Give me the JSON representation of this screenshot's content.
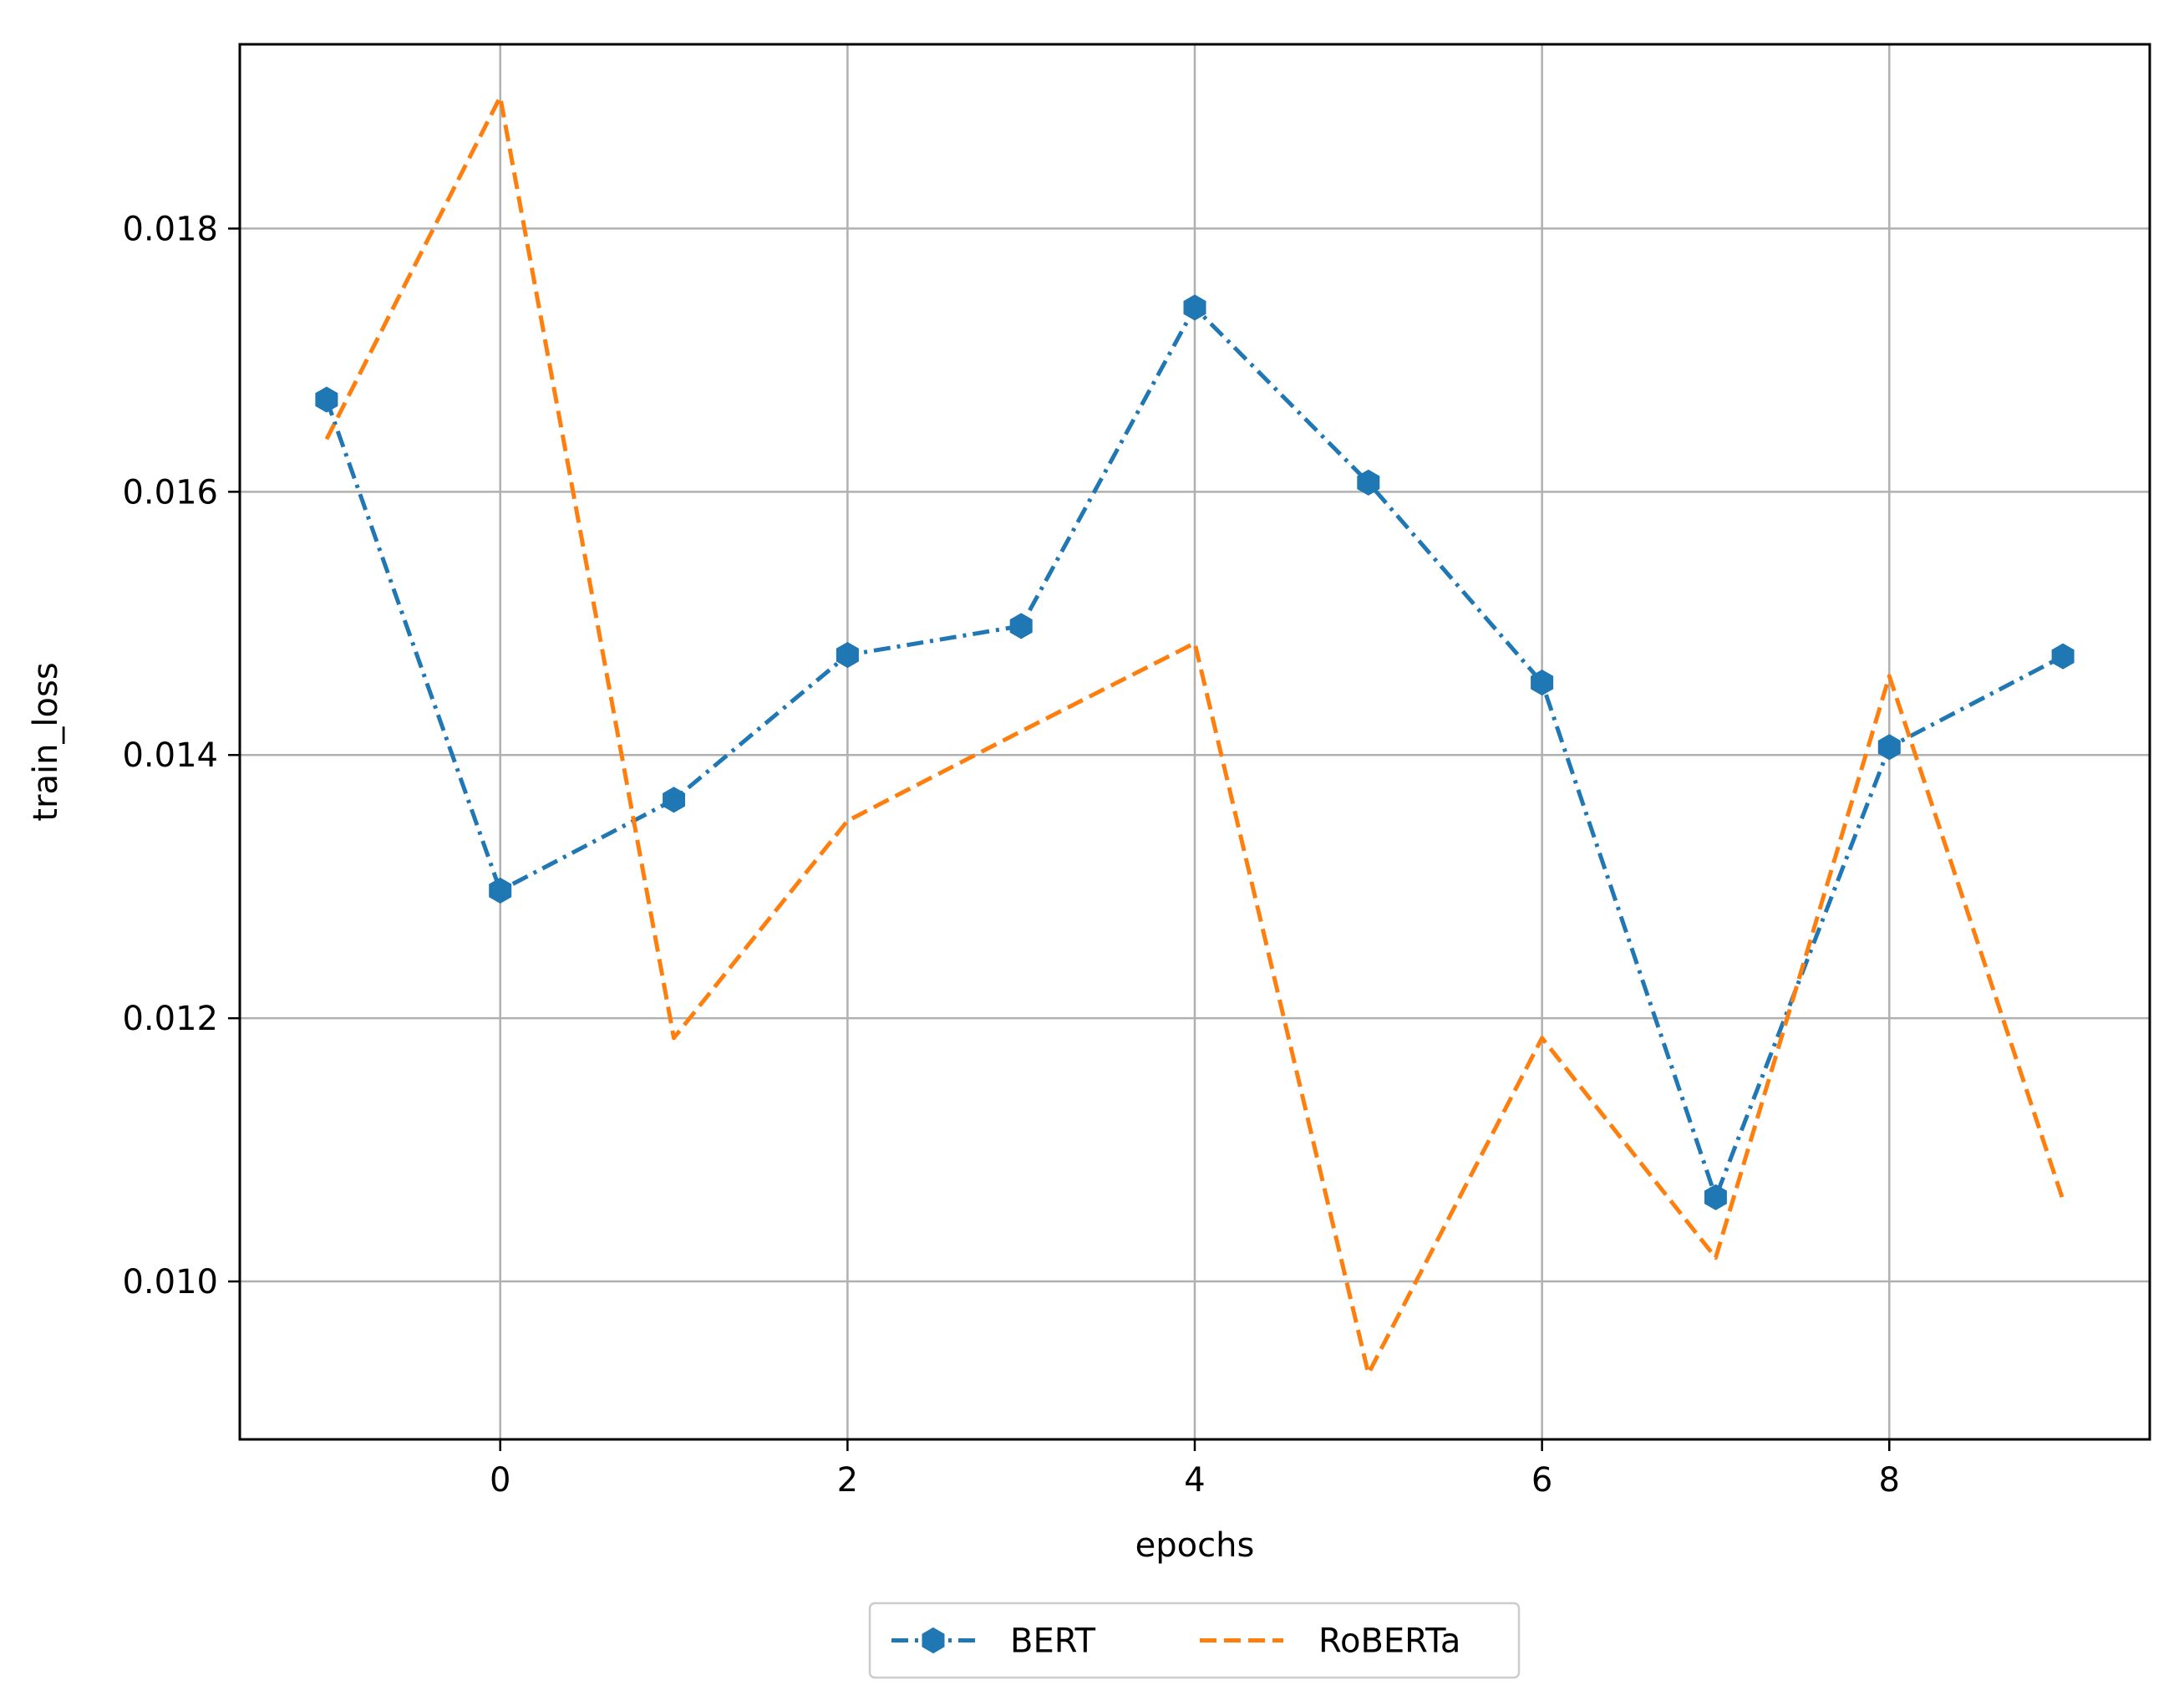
{
  "chart_data": {
    "type": "line",
    "title": "",
    "xlabel": "epochs",
    "ylabel": "train_loss",
    "xlim": [
      -1.5,
      9.5
    ],
    "ylim": [
      0.0088,
      0.0194
    ],
    "xticks": [
      0,
      2,
      4,
      6,
      8
    ],
    "xtick_labels": [
      "0",
      "2",
      "4",
      "6",
      "8"
    ],
    "yticks": [
      0.01,
      0.012,
      0.014,
      0.016,
      0.018
    ],
    "ytick_labels": [
      "0.010",
      "0.012",
      "0.014",
      "0.016",
      "0.018"
    ],
    "grid": true,
    "legend_position": "bottom-center, outside the plot",
    "series": [
      {
        "name": "BERT",
        "color": "#1f77b4",
        "line_style": "dash-dot",
        "marker": "hexagon",
        "x": [
          -1,
          0,
          1,
          2,
          3,
          4,
          5,
          6,
          7,
          8,
          9
        ],
        "y": [
          0.0167,
          0.01297,
          0.01366,
          0.01476,
          0.01498,
          0.0174,
          0.01607,
          0.01455,
          0.01064,
          0.01406,
          0.01475
        ]
      },
      {
        "name": "RoBERTa",
        "color": "#ff7f0e",
        "line_style": "dashed",
        "marker": "none",
        "x": [
          -1,
          0,
          1,
          2,
          3,
          4,
          5,
          6,
          7,
          8,
          9
        ],
        "y": [
          0.0164,
          0.019,
          0.01185,
          0.0135,
          0.01418,
          0.01485,
          0.0093,
          0.01185,
          0.01018,
          0.0146,
          0.01062
        ]
      }
    ]
  }
}
